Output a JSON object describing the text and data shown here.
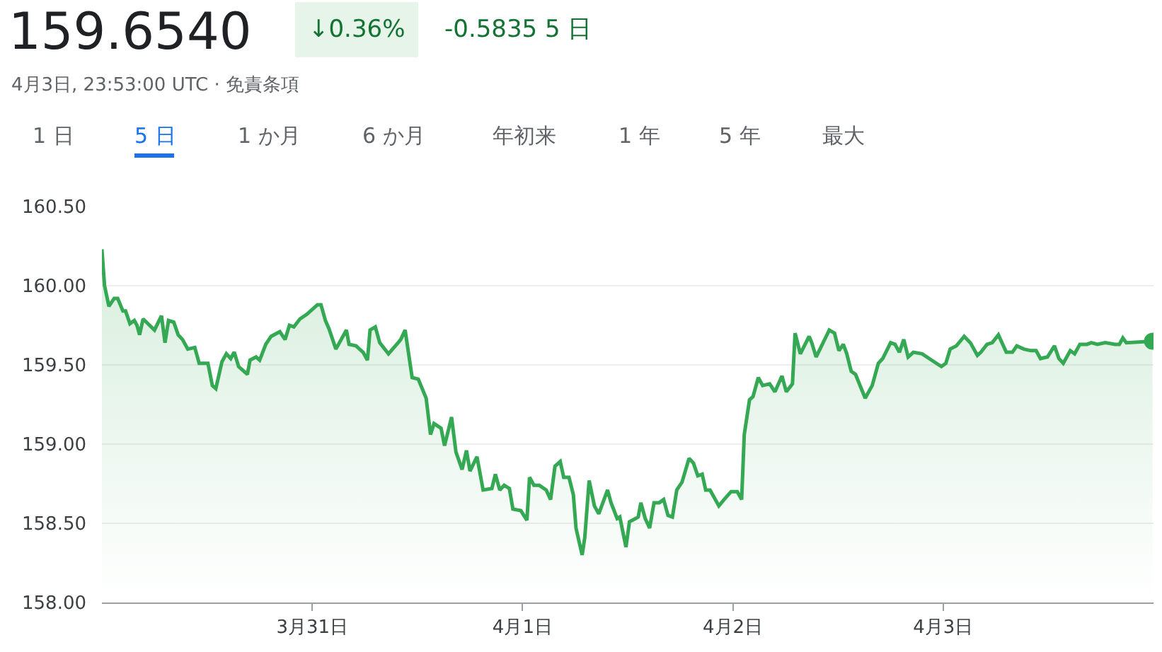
{
  "chart_data": {
    "type": "area",
    "title": "159.6540",
    "subtitle": "4月3日, 23:53:00 UTC · 免責条項",
    "annotations": [
      "↓0.36%",
      "-0.5835 5 日",
      "1 日",
      "5 日",
      "1 か月",
      "6 か月",
      "年初来",
      "1 年",
      "5 年",
      "最大"
    ],
    "x": [
      "--03-30T00:00",
      "--03-30T00:18",
      "--03-30T00:48",
      "--03-30T01:24",
      "--03-30T01:48",
      "--03-30T02:24",
      "--03-30T02:42",
      "--03-30T03:12",
      "--03-30T03:42",
      "--03-30T04:00",
      "--03-30T04:18",
      "--03-30T04:42",
      "--03-30T06:00",
      "--03-30T06:48",
      "--03-30T07:12",
      "--03-30T07:36",
      "--03-30T08:12",
      "--03-30T08:42",
      "--03-30T09:12",
      "--03-30T09:48",
      "--03-30T10:36",
      "--03-30T11:06",
      "--03-30T12:06",
      "--03-30T12:36",
      "--03-30T13:00",
      "--03-30T13:42",
      "--03-30T14:12",
      "--03-30T14:42",
      "--03-30T15:06",
      "--03-30T15:36",
      "--03-30T16:36",
      "--03-30T16:54",
      "--03-30T17:36",
      "--03-30T18:00",
      "--03-30T18:42",
      "--03-30T19:18",
      "--03-30T20:18",
      "--03-30T20:54",
      "--03-30T21:24",
      "--03-30T21:54",
      "--03-30T22:36",
      "--03-30T23:24",
      "--03-31T00:12",
      "--03-31T00:36",
      "--03-31T01:00",
      "--03-31T01:30",
      "--03-31T01:54",
      "--03-31T02:42",
      "--03-31T03:54",
      "--03-31T04:12",
      "--03-31T05:00",
      "--03-31T05:48",
      "--03-31T06:18",
      "--03-31T06:36",
      "--03-31T07:12",
      "--03-31T07:42",
      "--03-31T08:42",
      "--03-31T09:48",
      "--03-31T10:06",
      "--03-31T10:36",
      "--03-31T11:24",
      "--03-31T12:06",
      "--03-31T13:00",
      "--03-31T13:30",
      "--03-31T13:54",
      "--03-31T14:42",
      "--03-31T15:06",
      "--03-31T15:54",
      "--03-31T16:24",
      "--03-31T17:06",
      "--03-31T17:36",
      "--03-31T18:00",
      "--03-31T18:48",
      "--03-31T19:30",
      "--03-31T20:30",
      "--03-31T20:54",
      "--03-31T21:24",
      "--03-31T21:54",
      "--03-31T22:30",
      "--03-31T22:54",
      "--03-31T23:48",
      "--04-01T00:30",
      "--04-01T00:48",
      "--04-01T01:18",
      "--04-01T01:54",
      "--04-01T02:42",
      "--04-01T03:12",
      "--04-01T03:42",
      "--04-01T04:18",
      "--04-01T04:42",
      "--04-01T05:18",
      "--04-01T05:48",
      "--04-01T06:06",
      "--04-01T06:48",
      "--04-01T07:06",
      "--04-01T07:36",
      "--04-01T08:12",
      "--04-01T08:42",
      "--04-01T09:42",
      "--04-01T10:06",
      "--04-01T10:48",
      "--04-01T11:06",
      "--04-01T11:48",
      "--04-01T12:12",
      "--04-01T12:54",
      "--04-01T13:12",
      "--04-01T13:30",
      "--04-01T14:00",
      "--04-01T14:30",
      "--04-01T15:00",
      "--04-01T15:36",
      "--04-01T16:06",
      "--04-01T16:36",
      "--04-01T17:06",
      "--04-01T17:36",
      "--04-01T18:12",
      "--04-01T19:00",
      "--04-01T19:30",
      "--04-01T20:00",
      "--04-01T20:30",
      "--04-01T20:54",
      "--04-01T21:24",
      "--04-01T22:24",
      "--04-01T23:00",
      "--04-01T23:48",
      "--04-02T00:30",
      "--04-02T01:00",
      "--04-02T01:18",
      "--04-02T01:54",
      "--04-02T02:18",
      "--04-02T02:54",
      "--04-02T03:24",
      "--04-02T04:12",
      "--04-02T04:48",
      "--04-02T05:36",
      "--04-02T06:06",
      "--04-02T06:48",
      "--04-02T07:06",
      "--04-02T07:42",
      "--04-02T08:42",
      "--04-02T09:00",
      "--04-02T09:30",
      "--04-02T11:00",
      "--04-02T11:36",
      "--04-02T12:06",
      "--04-02T12:36",
      "--04-02T13:00",
      "--04-02T13:30",
      "--04-02T14:00",
      "--04-02T15:06",
      "--04-02T15:54",
      "--04-02T16:36",
      "--04-02T17:06",
      "--04-02T18:00",
      "--04-02T18:30",
      "--04-02T19:00",
      "--04-02T19:30",
      "--04-02T20:00",
      "--04-02T20:36",
      "--04-02T21:36",
      "--04-02T22:24",
      "--04-02T23:30",
      "--04-02T23:48",
      "--04-03T00:18",
      "--04-03T00:48",
      "--04-03T01:30",
      "--04-03T02:24",
      "--04-03T03:06",
      "--04-03T03:54",
      "--04-03T04:18",
      "--04-03T05:00",
      "--04-03T05:36",
      "--04-03T06:18",
      "--04-03T07:12",
      "--04-03T07:54",
      "--04-03T08:24",
      "--04-03T09:12",
      "--04-03T10:00",
      "--04-03T10:36",
      "--04-03T11:06",
      "--04-03T11:54",
      "--04-03T12:42",
      "--04-03T13:12",
      "--04-03T13:42",
      "--04-03T14:30",
      "--04-03T15:00",
      "--04-03T15:36",
      "--04-03T16:24",
      "--04-03T16:54",
      "--04-03T17:36",
      "--04-03T18:30",
      "--04-03T19:36",
      "--04-03T20:06",
      "--04-03T20:30",
      "--04-03T20:54",
      "--04-03T23:53"
    ],
    "series": [
      {
        "color": "#34a853",
        "values": [
          160.23,
          160.0,
          159.87,
          159.92,
          159.92,
          159.84,
          159.84,
          159.76,
          159.78,
          159.75,
          159.69,
          159.79,
          159.72,
          159.81,
          159.64,
          159.78,
          159.77,
          159.69,
          159.66,
          159.6,
          159.61,
          159.51,
          159.51,
          159.37,
          159.35,
          159.52,
          159.57,
          159.54,
          159.58,
          159.49,
          159.44,
          159.53,
          159.55,
          159.53,
          159.63,
          159.68,
          159.71,
          159.66,
          159.75,
          159.74,
          159.79,
          159.82,
          159.86,
          159.88,
          159.88,
          159.78,
          159.73,
          159.6,
          159.72,
          159.63,
          159.62,
          159.58,
          159.53,
          159.72,
          159.74,
          159.64,
          159.57,
          159.64,
          159.66,
          159.72,
          159.42,
          159.41,
          159.29,
          159.06,
          159.13,
          159.1,
          158.99,
          159.17,
          158.95,
          158.84,
          158.96,
          158.83,
          158.92,
          158.71,
          158.72,
          158.81,
          158.71,
          158.74,
          158.72,
          158.59,
          158.58,
          158.52,
          158.79,
          158.74,
          158.74,
          158.71,
          158.65,
          158.86,
          158.89,
          158.79,
          158.79,
          158.68,
          158.47,
          158.3,
          158.41,
          158.77,
          158.61,
          158.56,
          158.71,
          158.63,
          158.53,
          158.54,
          158.35,
          158.51,
          158.53,
          158.54,
          158.63,
          158.53,
          158.47,
          158.63,
          158.63,
          158.65,
          158.55,
          158.54,
          158.71,
          158.76,
          158.91,
          158.88,
          158.8,
          158.81,
          158.71,
          158.71,
          158.61,
          158.65,
          158.7,
          158.7,
          158.65,
          159.06,
          159.28,
          159.3,
          159.42,
          159.37,
          159.38,
          159.33,
          159.43,
          159.33,
          159.38,
          159.7,
          159.57,
          159.68,
          159.64,
          159.55,
          159.72,
          159.7,
          159.59,
          159.63,
          159.57,
          159.46,
          159.44,
          159.29,
          159.37,
          159.51,
          159.54,
          159.64,
          159.63,
          159.58,
          159.66,
          159.55,
          159.58,
          159.57,
          159.54,
          159.5,
          159.49,
          159.51,
          159.6,
          159.62,
          159.68,
          159.64,
          159.56,
          159.58,
          159.63,
          159.64,
          159.69,
          159.58,
          159.58,
          159.62,
          159.6,
          159.59,
          159.59,
          159.54,
          159.55,
          159.62,
          159.54,
          159.51,
          159.59,
          159.57,
          159.63,
          159.63,
          159.64,
          159.63,
          159.64,
          159.63,
          159.63,
          159.67,
          159.64,
          159.65
        ]
      },
      {
        "type": "scatter",
        "color": "#34a853",
        "marker": "circle",
        "x": [
          "--04-03T23:53"
        ],
        "values": [
          159.65
        ]
      }
    ],
    "xlim": [
      "--03-30T00:00",
      "--04-04T00:00"
    ],
    "xticks": [
      {
        "value": "--03-31",
        "label": "3月31日"
      },
      {
        "value": "--04-01",
        "label": "4月1日"
      },
      {
        "value": "--04-02",
        "label": "4月2日"
      },
      {
        "value": "--04-03",
        "label": "4月3日"
      }
    ],
    "ylim": [
      158,
      160.5
    ],
    "yticks": [
      {
        "value": 158,
        "label": "158.00"
      },
      {
        "value": 158.5,
        "label": "158.50"
      },
      {
        "value": 159,
        "label": "159.00"
      },
      {
        "value": 159.5,
        "label": "159.50"
      },
      {
        "value": 160,
        "label": "160.00"
      },
      {
        "value": 160.5,
        "label": "160.50"
      }
    ],
    "grid": "y",
    "legend": false
  }
}
